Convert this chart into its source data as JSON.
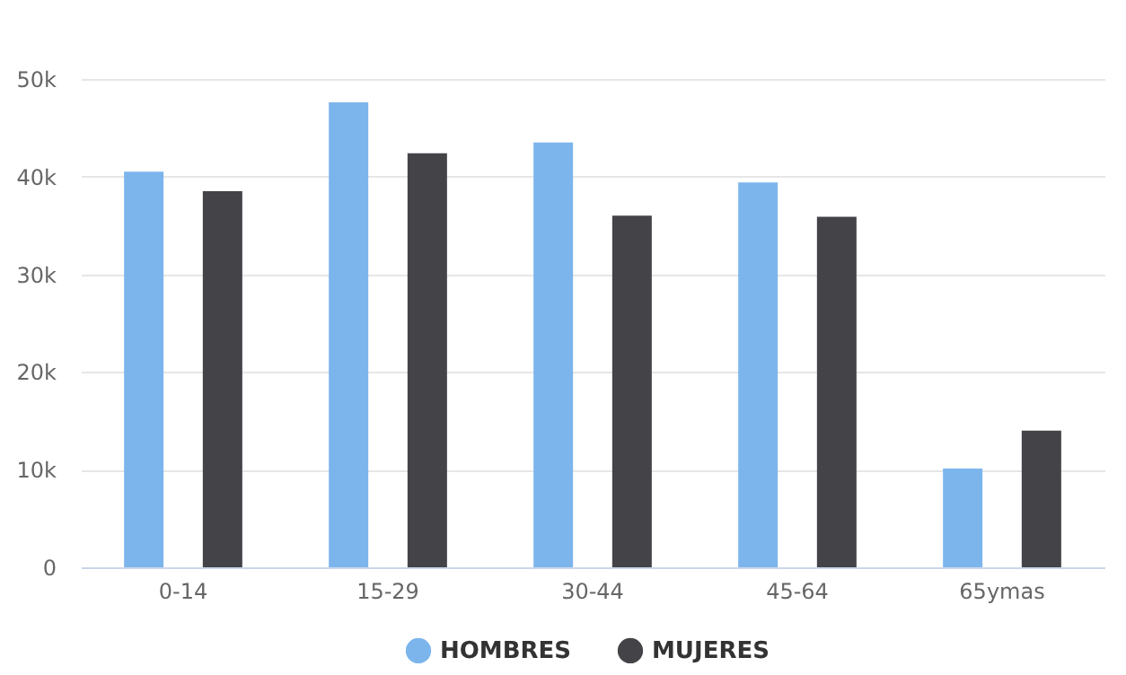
{
  "chart_data": {
    "type": "bar",
    "categories": [
      "0-14",
      "15-29",
      "30-44",
      "45-64",
      "65ymas"
    ],
    "series": [
      {
        "name": "HOMBRES",
        "color": "#7cb5ec",
        "values": [
          40500,
          47600,
          43500,
          39400,
          10100
        ]
      },
      {
        "name": "MUJERES",
        "color": "#434348",
        "values": [
          38500,
          42400,
          36000,
          35900,
          14000
        ]
      }
    ],
    "ylim": [
      0,
      50000
    ],
    "yticks": [
      {
        "value": 0,
        "label": "0"
      },
      {
        "value": 10000,
        "label": "10k"
      },
      {
        "value": 20000,
        "label": "20k"
      },
      {
        "value": 30000,
        "label": "30k"
      },
      {
        "value": 40000,
        "label": "40k"
      },
      {
        "value": 50000,
        "label": "50k"
      }
    ],
    "grid": "y",
    "legend": "bottom"
  }
}
